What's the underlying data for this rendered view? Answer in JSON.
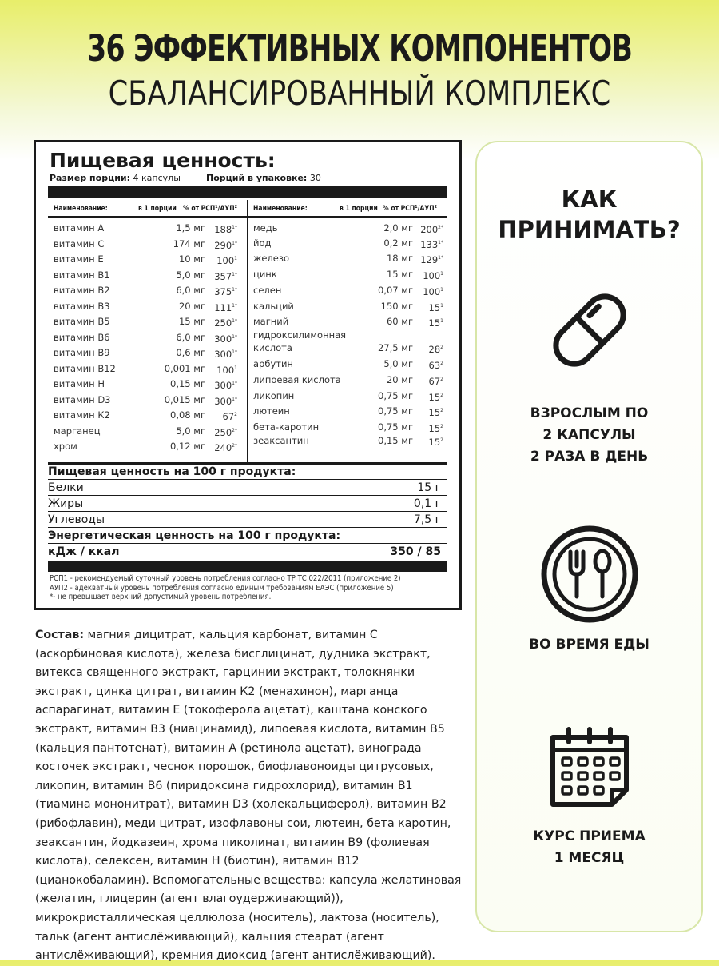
{
  "header": {
    "line1": "36 ЭФФЕКТИВНЫХ КОМПОНЕНТОВ",
    "line2": "СБАЛАНСИРОВАННЫЙ КОМПЛЕКС"
  },
  "label": {
    "title": "Пищевая ценность:",
    "serving_size_label": "Размер порции:",
    "serving_size": "4 капсулы",
    "servings_label": "Порций в упаковке:",
    "servings": "30",
    "col_name": "Наименование:",
    "col_amount": "в 1 порции",
    "col_pct": "% от РСП¹/АУП²",
    "left_rows": [
      {
        "name": "витамин А",
        "amount": "1,5 мг",
        "pct": "188",
        "sup": "1*"
      },
      {
        "name": "витамин С",
        "amount": "174 мг",
        "pct": "290",
        "sup": "1*"
      },
      {
        "name": "витамин Е",
        "amount": "10 мг",
        "pct": "100",
        "sup": "1"
      },
      {
        "name": "витамин В1",
        "amount": "5,0 мг",
        "pct": "357",
        "sup": "1*"
      },
      {
        "name": "витамин В2",
        "amount": "6,0 мг",
        "pct": "375",
        "sup": "1*"
      },
      {
        "name": "витамин В3",
        "amount": "20 мг",
        "pct": "111",
        "sup": "1*"
      },
      {
        "name": "витамин В5",
        "amount": "15 мг",
        "pct": "250",
        "sup": "1*"
      },
      {
        "name": "витамин В6",
        "amount": "6,0 мг",
        "pct": "300",
        "sup": "1*"
      },
      {
        "name": "витамин В9",
        "amount": "0,6 мг",
        "pct": "300",
        "sup": "1*"
      },
      {
        "name": "витамин В12",
        "amount": "0,001 мг",
        "pct": "100",
        "sup": "1"
      },
      {
        "name": "витамин Н",
        "amount": "0,15 мг",
        "pct": "300",
        "sup": "1*"
      },
      {
        "name": "витамин D3",
        "amount": "0,015 мг",
        "pct": "300",
        "sup": "1*"
      },
      {
        "name": "витамин К2",
        "amount": "0,08 мг",
        "pct": "67",
        "sup": "2"
      },
      {
        "name": "марганец",
        "amount": "5,0 мг",
        "pct": "250",
        "sup": "2*"
      },
      {
        "name": "хром",
        "amount": "0,12 мг",
        "pct": "240",
        "sup": "2*"
      }
    ],
    "right_rows": [
      {
        "name": "медь",
        "amount": "2,0 мг",
        "pct": "200",
        "sup": "2*"
      },
      {
        "name": "йод",
        "amount": "0,2 мг",
        "pct": "133",
        "sup": "1*"
      },
      {
        "name": "железо",
        "amount": "18 мг",
        "pct": "129",
        "sup": "1*"
      },
      {
        "name": "цинк",
        "amount": "15 мг",
        "pct": "100",
        "sup": "1"
      },
      {
        "name": "селен",
        "amount": "0,07 мг",
        "pct": "100",
        "sup": "1"
      },
      {
        "name": "кальций",
        "amount": "150 мг",
        "pct": "15",
        "sup": "1"
      },
      {
        "name": "магний",
        "amount": "60 мг",
        "pct": "15",
        "sup": "1"
      },
      {
        "name": "гидроксилимонная",
        "name2": "кислота",
        "amount": "27,5 мг",
        "pct": "28",
        "sup": "2"
      },
      {
        "name": "арбутин",
        "amount": "5,0 мг",
        "pct": "63",
        "sup": "2"
      },
      {
        "name": "липоевая кислота",
        "amount": "20 мг",
        "pct": "67",
        "sup": "2"
      },
      {
        "name": "ликопин",
        "amount": "0,75 мг",
        "pct": "15",
        "sup": "2"
      },
      {
        "name": "лютеин",
        "amount": "0,75 мг",
        "pct": "15",
        "sup": "2"
      },
      {
        "name": "бета-каротин",
        "amount": "0,75 мг",
        "pct": "15",
        "sup": "2"
      },
      {
        "name": "зеаксантин",
        "amount": "0,15 мг",
        "pct": "15",
        "sup": "2"
      }
    ],
    "per100_title": "Пищевая ценность на 100 г продукта:",
    "protein_label": "Белки",
    "protein": "15 г",
    "fat_label": "Жиры",
    "fat": "0,1 г",
    "carbs_label": "Углеводы",
    "carbs": "7,5 г",
    "energy_title": "Энергетическая ценность на 100 г продукта:",
    "energy_label": "кДж / ккал",
    "energy": "350 / 85",
    "foot1": "РСП1 - рекомендуемый суточный уровень потребления согласно ТР ТС 022/2011 (приложение 2)",
    "foot2": "АУП2 - адекватный уровень потребления согласно единым требованиям ЕАЭС (приложение 5)",
    "foot3": "*- не превышает верхний допустимый уровень потребления."
  },
  "composition": {
    "label": "Состав:",
    "text": " магния дицитрат, кальция карбонат, витамин С (аскорбиновая кислота), железа бисглицинат, дудника экстракт, витекса священного экстракт, гарцинии экстракт, толокнянки экстракт, цинка цитрат, витамин К2 (менахинон), марганца аспарагинат, витамин Е (токоферола ацетат), каштана конского экстракт, витамин В3 (ниацинамид), липоевая кислота, витамин В5 (кальция пантотенат), витамин А (ретинола ацетат), винограда косточек экстракт, чеснок порошок, биофлавоноиды цитрусовых, ликопин, витамин В6 (пиридоксина гидрохлорид), витамин В1 (тиамина мононитрат), витамин D3 (холекальциферол), витамин В2 (рибофлавин), меди цитрат, изофлавоны сои, лютеин, бета каротин, зеаксантин, йодказеин, хрома пиколинат, витамин В9 (фолиевая кислота), селексен, витамин Н (биотин), витамин В12 (цианокобаламин). Вспомогательные вещества: капсула желатиновая (желатин, глицерин (агент влагоудерживающий)), микрокристаллическая целлюлоза (носитель), лактоза (носитель), тальк (агент антислёживающий), кальция стеарат (агент антислёживающий), кремния диоксид (агент антислёживающий)."
  },
  "howto": {
    "title1": "КАК",
    "title2": "ПРИНИМАТЬ?",
    "dose1": "ВЗРОСЛЫМ ПО",
    "dose2": "2 КАПСУЛЫ",
    "dose3": "2 РАЗА В ДЕНЬ",
    "meal": "ВО ВРЕМЯ ЕДЫ",
    "course1": "КУРС ПРИЕМА",
    "course2": "1 МЕСЯЦ"
  }
}
